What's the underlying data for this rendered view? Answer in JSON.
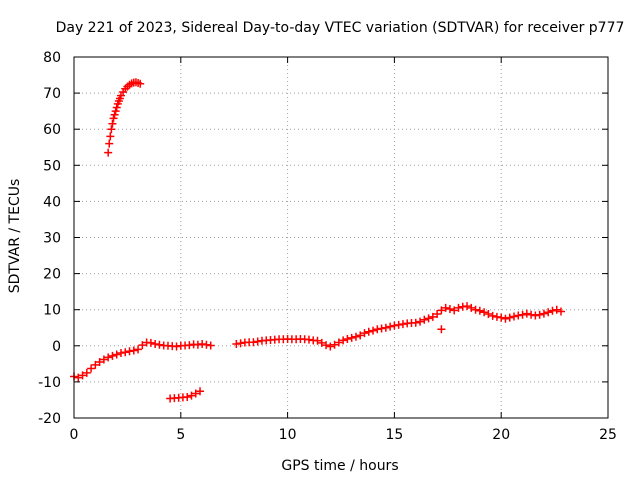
{
  "chart_data": {
    "type": "scatter",
    "title": "Day 221 of 2023, Sidereal Day-to-day VTEC variation (SDTVAR) for receiver p777",
    "xlabel": "GPS time / hours",
    "ylabel": "SDTVAR / TECUs",
    "xlim": [
      0,
      25
    ],
    "ylim": [
      -20,
      80
    ],
    "xticks": [
      0,
      5,
      10,
      15,
      20,
      25
    ],
    "yticks": [
      -20,
      -10,
      0,
      10,
      20,
      30,
      40,
      50,
      60,
      70,
      80
    ],
    "grid": true,
    "marker": "+",
    "color": "#ff0000",
    "series": [
      {
        "name": "main track",
        "points": [
          [
            0.0,
            -8.5
          ],
          [
            0.2,
            -8.8
          ],
          [
            0.4,
            -8.2
          ],
          [
            0.6,
            -7.5
          ],
          [
            0.8,
            -6.3
          ],
          [
            1.0,
            -5.3
          ],
          [
            1.2,
            -4.5
          ],
          [
            1.4,
            -3.8
          ],
          [
            1.6,
            -3.2
          ],
          [
            1.8,
            -2.8
          ],
          [
            2.0,
            -2.4
          ],
          [
            2.2,
            -2.0
          ],
          [
            2.4,
            -1.8
          ],
          [
            2.6,
            -1.5
          ],
          [
            2.8,
            -1.3
          ],
          [
            3.0,
            -1.0
          ],
          [
            3.2,
            0.2
          ],
          [
            3.4,
            0.9
          ],
          [
            3.6,
            0.8
          ],
          [
            3.8,
            0.5
          ],
          [
            4.0,
            0.3
          ],
          [
            4.2,
            0.1
          ],
          [
            4.4,
            0.0
          ],
          [
            4.6,
            -0.1
          ],
          [
            4.8,
            -0.2
          ],
          [
            5.0,
            0.0
          ],
          [
            5.2,
            0.1
          ],
          [
            5.4,
            0.2
          ],
          [
            5.6,
            0.4
          ],
          [
            5.8,
            0.3
          ],
          [
            6.0,
            0.5
          ],
          [
            6.2,
            0.3
          ],
          [
            6.4,
            0.1
          ],
          [
            7.6,
            0.5
          ],
          [
            7.8,
            0.7
          ],
          [
            8.0,
            0.9
          ],
          [
            8.2,
            1.0
          ],
          [
            8.4,
            1.0
          ],
          [
            8.6,
            1.2
          ],
          [
            8.8,
            1.4
          ],
          [
            9.0,
            1.5
          ],
          [
            9.2,
            1.6
          ],
          [
            9.4,
            1.7
          ],
          [
            9.6,
            1.8
          ],
          [
            9.8,
            1.8
          ],
          [
            10.0,
            1.9
          ],
          [
            10.2,
            1.8
          ],
          [
            10.4,
            1.8
          ],
          [
            10.6,
            1.9
          ],
          [
            10.8,
            1.8
          ],
          [
            11.0,
            1.7
          ],
          [
            11.2,
            1.5
          ],
          [
            11.4,
            1.4
          ],
          [
            11.6,
            0.8
          ],
          [
            11.8,
            0.2
          ],
          [
            12.0,
            -0.2
          ],
          [
            12.2,
            0.3
          ],
          [
            12.4,
            0.9
          ],
          [
            12.6,
            1.5
          ],
          [
            12.8,
            1.9
          ],
          [
            13.0,
            2.2
          ],
          [
            13.2,
            2.5
          ],
          [
            13.4,
            2.9
          ],
          [
            13.6,
            3.5
          ],
          [
            13.8,
            3.9
          ],
          [
            14.0,
            4.2
          ],
          [
            14.2,
            4.6
          ],
          [
            14.4,
            4.8
          ],
          [
            14.6,
            5.0
          ],
          [
            14.8,
            5.3
          ],
          [
            15.0,
            5.6
          ],
          [
            15.2,
            5.8
          ],
          [
            15.4,
            6.0
          ],
          [
            15.6,
            6.2
          ],
          [
            15.8,
            6.3
          ],
          [
            16.0,
            6.4
          ],
          [
            16.2,
            6.7
          ],
          [
            16.4,
            7.2
          ],
          [
            16.6,
            7.6
          ],
          [
            16.8,
            8.0
          ],
          [
            17.0,
            8.8
          ],
          [
            17.2,
            9.8
          ],
          [
            17.4,
            10.5
          ],
          [
            17.6,
            10.2
          ],
          [
            17.8,
            9.8
          ],
          [
            18.0,
            10.5
          ],
          [
            18.2,
            10.8
          ],
          [
            18.4,
            11.0
          ],
          [
            18.6,
            10.5
          ],
          [
            18.8,
            10.0
          ],
          [
            19.0,
            9.7
          ],
          [
            19.2,
            9.3
          ],
          [
            19.4,
            8.8
          ],
          [
            19.6,
            8.3
          ],
          [
            19.8,
            8.0
          ],
          [
            20.0,
            7.8
          ],
          [
            20.2,
            7.5
          ],
          [
            20.4,
            7.8
          ],
          [
            20.6,
            8.1
          ],
          [
            20.8,
            8.4
          ],
          [
            21.0,
            8.6
          ],
          [
            21.2,
            8.9
          ],
          [
            21.4,
            8.6
          ],
          [
            21.6,
            8.4
          ],
          [
            21.8,
            8.6
          ],
          [
            22.0,
            8.9
          ],
          [
            22.2,
            9.3
          ],
          [
            22.4,
            9.7
          ],
          [
            22.6,
            10.0
          ],
          [
            22.8,
            9.5
          ]
        ]
      },
      {
        "name": "early arc",
        "points": [
          [
            1.6,
            53.5
          ],
          [
            1.65,
            56.0
          ],
          [
            1.7,
            58.0
          ],
          [
            1.75,
            60.0
          ],
          [
            1.8,
            61.5
          ],
          [
            1.85,
            63.0
          ],
          [
            1.9,
            64.0
          ],
          [
            1.95,
            65.0
          ],
          [
            2.0,
            66.0
          ],
          [
            2.05,
            67.0
          ],
          [
            2.1,
            67.8
          ],
          [
            2.15,
            68.5
          ],
          [
            2.2,
            69.3
          ],
          [
            2.3,
            70.3
          ],
          [
            2.4,
            71.2
          ],
          [
            2.5,
            71.8
          ],
          [
            2.6,
            72.3
          ],
          [
            2.7,
            72.7
          ],
          [
            2.8,
            72.9
          ],
          [
            2.9,
            73.0
          ],
          [
            3.0,
            72.8
          ],
          [
            3.1,
            72.6
          ]
        ]
      },
      {
        "name": "short negative segment",
        "points": [
          [
            4.5,
            -14.6
          ],
          [
            4.7,
            -14.5
          ],
          [
            4.9,
            -14.4
          ],
          [
            5.1,
            -14.3
          ],
          [
            5.3,
            -14.2
          ],
          [
            5.5,
            -13.8
          ],
          [
            5.7,
            -13.2
          ],
          [
            5.9,
            -12.6
          ]
        ]
      },
      {
        "name": "outlier",
        "points": [
          [
            17.2,
            4.6
          ]
        ]
      }
    ]
  }
}
